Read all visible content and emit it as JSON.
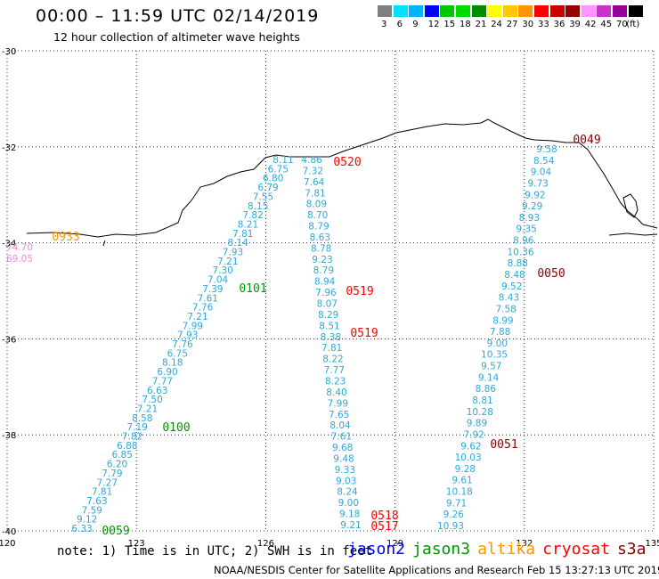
{
  "title": "00:00 – 11:59 UTC 02/14/2019",
  "subtitle": "12 hour collection of altimeter wave heights",
  "scale": {
    "unit": "(ft)",
    "levels": [
      {
        "label": "3",
        "color": "#808080"
      },
      {
        "label": "6",
        "color": "#00e0ff"
      },
      {
        "label": "9",
        "color": "#00b4ff"
      },
      {
        "label": "12",
        "color": "#0000ff"
      },
      {
        "label": "15",
        "color": "#00c800"
      },
      {
        "label": "18",
        "color": "#00dc00"
      },
      {
        "label": "21",
        "color": "#008c00"
      },
      {
        "label": "24",
        "color": "#ffff00"
      },
      {
        "label": "27",
        "color": "#ffc800"
      },
      {
        "label": "30",
        "color": "#ff9600"
      },
      {
        "label": "33",
        "color": "#ff0000"
      },
      {
        "label": "36",
        "color": "#c80000"
      },
      {
        "label": "39",
        "color": "#960000"
      },
      {
        "label": "42",
        "color": "#ff96ff"
      },
      {
        "label": "45",
        "color": "#c832c8"
      },
      {
        "label": "70",
        "color": "#960096"
      },
      {
        "label": "",
        "color": "#000000"
      }
    ]
  },
  "axes": {
    "x_ticks": [
      "120",
      "123",
      "126",
      "129",
      "132",
      "135"
    ],
    "y_ticks": [
      "-30",
      "-32",
      "-34",
      "-36",
      "-38",
      "-40"
    ]
  },
  "tracks": [
    {
      "color": "#2fa8d8",
      "values": [
        "6.33",
        "9.12",
        "7.59",
        "7.63",
        "7.81",
        "7.27",
        "7.79",
        "6.20",
        "6.85",
        "6.88",
        "7.82",
        "7.19",
        "8.58",
        "7.21",
        "7.50",
        "6.63",
        "7.77",
        "6.90",
        "8.18",
        "6.75",
        "7.76",
        "7.93",
        "7.99",
        "7.21",
        "7.76",
        "7.61",
        "7.39",
        "7.04",
        "7.30",
        "7.21",
        "7.93",
        "8.14",
        "7.81",
        "8.21",
        "7.82",
        "8.15",
        "7.55",
        "6.79",
        "6.80",
        "6.75",
        "8.11"
      ]
    },
    {
      "color": "#2fa8d8",
      "values": [
        "4.86",
        "7.32",
        "7.64",
        "7.81",
        "8.09",
        "8.70",
        "8.79",
        "8.63",
        "8.78",
        "9.23",
        "8.79",
        "8.94",
        "7.96",
        "8.07",
        "8.29",
        "8.51",
        "8.38",
        "7.81",
        "8.22",
        "7.77",
        "8.23",
        "8.40",
        "7.99",
        "7.65",
        "8.04",
        "7.61",
        "9.68",
        "9.48",
        "9.33",
        "9.03",
        "8.24",
        "9.00",
        "9.18",
        "9.21"
      ]
    },
    {
      "color": "#2fa8d8",
      "values": [
        "9.58",
        "8.54",
        "9.04",
        "9.73",
        "9.92",
        "9.29",
        "8.93",
        "9.35",
        "8.96",
        "10.36",
        "8.88",
        "8.48",
        "9.52",
        "8.43",
        "7.58",
        "8.99",
        "7.88",
        "9.00",
        "10.35",
        "9.57",
        "9.14",
        "8.86",
        "8.81",
        "10.28",
        "9.89",
        "7.92",
        "9.62",
        "10.03",
        "9.28",
        "9.61",
        "10.18",
        "9.71",
        "9.26",
        "10.93"
      ]
    },
    {
      "color": "#ee88dd",
      "values": [
        "74.70",
        "69.05"
      ]
    }
  ],
  "passes": [
    {
      "time": "0520",
      "mission": "cryosat"
    },
    {
      "time": "0519",
      "mission": "cryosat"
    },
    {
      "time": "0519",
      "mission": "cryosat"
    },
    {
      "time": "0518",
      "mission": "cryosat"
    },
    {
      "time": "0517",
      "mission": "cryosat"
    },
    {
      "time": "0101",
      "mission": "jason3"
    },
    {
      "time": "0100",
      "mission": "jason3"
    },
    {
      "time": "0059",
      "mission": "jason3"
    },
    {
      "time": "0049",
      "mission": "s3a"
    },
    {
      "time": "0050",
      "mission": "s3a"
    },
    {
      "time": "0051",
      "mission": "s3a"
    },
    {
      "time": "0933",
      "mission": "altika"
    }
  ],
  "mission_colors": {
    "jason2": "#0000ff",
    "jason3": "#009600",
    "altika": "#ff9600",
    "cryosat": "#ff0000",
    "s3a": "#8b0000"
  },
  "footer": {
    "note": "note: 1) Time is in UTC; 2) SWH is in feet",
    "missions": [
      "jason2",
      "jason3",
      "altika",
      "cryosat",
      "s3a"
    ],
    "credit": "NOAA/NESDIS Center for Satellite Applications and Research    Feb 15 13:27:13 UTC 2019"
  }
}
